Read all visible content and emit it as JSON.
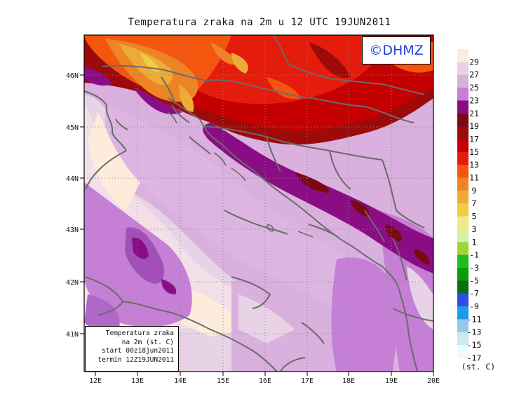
{
  "title": "Temperatura zraka na 2m u 12 UTC 19JUN2011",
  "logo": "©DHMZ",
  "info_box": {
    "line1": "Temperatura zraka",
    "line2": "na 2m (st. C)",
    "line3": "start 00z18jun2011",
    "line4": "termin 12Z19JUN2011"
  },
  "axes": {
    "lon_labels": [
      "12E",
      "13E",
      "14E",
      "15E",
      "16E",
      "17E",
      "18E",
      "19E",
      "20E"
    ],
    "lat_labels": [
      "46N",
      "45N",
      "44N",
      "43N",
      "42N",
      "41N"
    ]
  },
  "colorbar": {
    "unit": "(st. C)",
    "levels": [
      "29",
      "27",
      "25",
      "23",
      "21",
      "19",
      "17",
      "15",
      "13",
      "11",
      "9",
      "7",
      "5",
      "3",
      "1",
      "-1",
      "-3",
      "-5",
      "-7",
      "-9",
      "-11",
      "-13",
      "-15",
      "-17"
    ],
    "colors": [
      "#fdecdc",
      "#e8d3e6",
      "#d9b0de",
      "#c57fd4",
      "#8b0d86",
      "#7a0a12",
      "#9c0a0a",
      "#c40000",
      "#e51b0b",
      "#f45610",
      "#ee8424",
      "#edac37",
      "#efcf3f",
      "#eeea8c",
      "#d7f0a6",
      "#9cd739",
      "#1dbf1d",
      "#0d9a0d",
      "#0a6e14",
      "#2d4fe0",
      "#1e9be4",
      "#93c9ea",
      "#cbe9ef",
      "#effcfd"
    ]
  }
}
